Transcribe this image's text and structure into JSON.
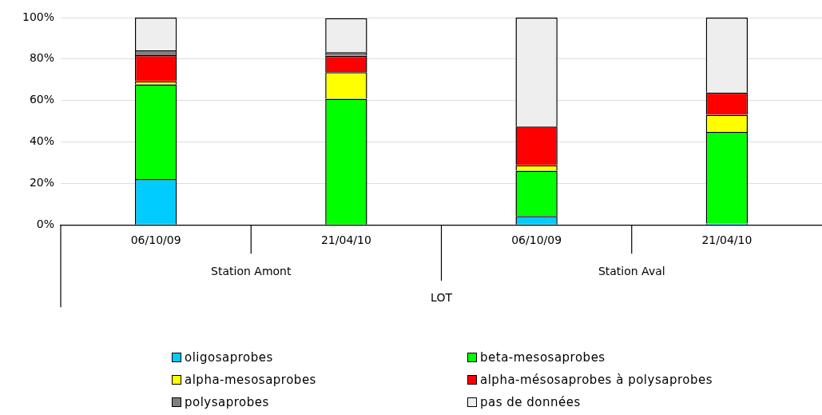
{
  "chart_data": {
    "type": "bar",
    "stacked": true,
    "categories": [
      "06/10/09",
      "21/04/10",
      "06/10/09",
      "21/04/10"
    ],
    "annotations": [
      "Station Amont",
      "Station Aval"
    ],
    "xlabel": "LOT",
    "series": [
      {
        "name": "oligosaprobes",
        "color": "#00ccff",
        "values": [
          22.1,
          null,
          4.2,
          0.7
        ]
      },
      {
        "name": "beta-mesosaprobes",
        "color": "#00ff00",
        "values": [
          45.7,
          60.8,
          21.9,
          44.1
        ]
      },
      {
        "name": "alpha-mesosaprobes",
        "color": "#ffff00",
        "values": [
          1.5,
          12.9,
          2.7,
          8.3
        ]
      },
      {
        "name": "alpha-mésosaprobes à polysaprobes",
        "color": "#ff0000",
        "values": [
          12.6,
          7.9,
          18.6,
          10.7
        ]
      },
      {
        "name": "polysaprobes",
        "color": "#808080",
        "values": [
          2.3,
          1.7,
          0,
          0
        ]
      },
      {
        "name": "pas de données",
        "color": "#eeeeee",
        "values": [
          15.8,
          16.4,
          52.6,
          36.2
        ]
      }
    ],
    "ylim": [
      0,
      100
    ],
    "yticks": [
      {
        "value": 0,
        "label": "0%"
      },
      {
        "value": 20,
        "label": "20%"
      },
      {
        "value": 40,
        "label": "40%"
      },
      {
        "value": 60,
        "label": "60%"
      },
      {
        "value": 80,
        "label": "80%"
      },
      {
        "value": 100,
        "label": "100%"
      }
    ],
    "grid": "y",
    "legend": "bottom"
  }
}
